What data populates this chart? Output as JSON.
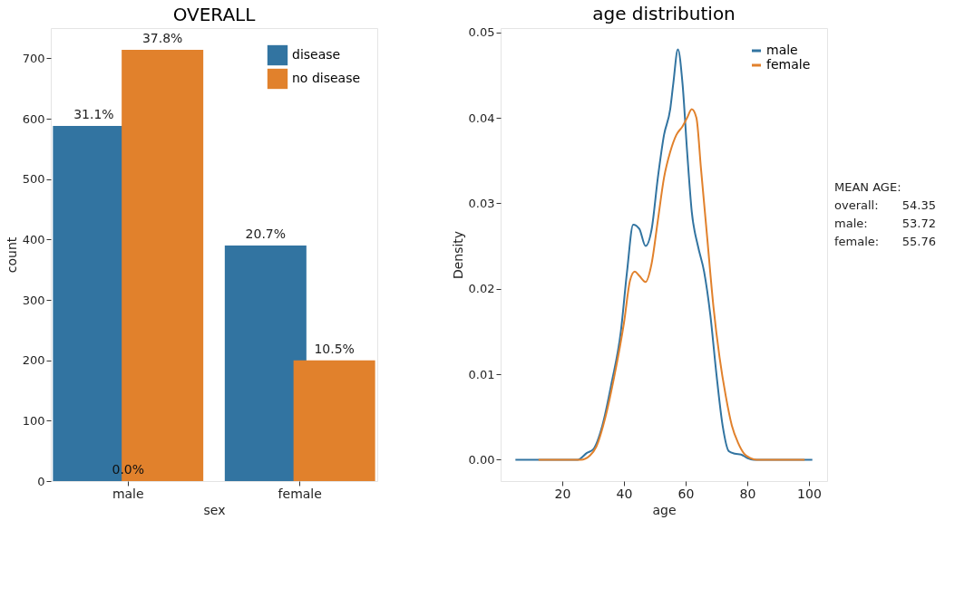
{
  "chart_data": [
    {
      "type": "bar",
      "title": "OVERALL",
      "xlabel": "sex",
      "ylabel": "count",
      "categories": [
        "male",
        "female"
      ],
      "series": [
        {
          "name": "disease",
          "color": "#3274a1",
          "values": [
            588,
            390
          ]
        },
        {
          "name": "no disease",
          "color": "#e1812c",
          "values": [
            714,
            200
          ]
        }
      ],
      "ylim": [
        0,
        750
      ],
      "yticks": [
        0,
        100,
        200,
        300,
        400,
        500,
        600,
        700
      ],
      "grid": false,
      "legend": "top right",
      "annotations": [
        {
          "text": "31.1%",
          "x": "male",
          "y": 588
        },
        {
          "text": "37.8%",
          "x": "male",
          "y": 714
        },
        {
          "text": "20.7%",
          "x": "female",
          "y": 390
        },
        {
          "text": "10.5%",
          "x": "female",
          "y": 200
        },
        {
          "text": "0.0%",
          "x": "male",
          "y": 0
        }
      ]
    },
    {
      "type": "line",
      "title": "age distribution",
      "xlabel": "age",
      "ylabel": "Density",
      "series": [
        {
          "name": "male",
          "color": "#3274a1",
          "x": [
            4.8,
            25,
            28,
            30,
            33,
            36,
            39,
            41,
            43,
            45,
            47,
            49,
            51,
            53,
            55,
            56,
            57.5,
            59,
            60.5,
            62,
            64,
            66,
            68,
            70,
            72,
            74,
            76,
            78,
            80,
            82,
            101.1
          ],
          "values": [
            0,
            0,
            0.0008,
            0.0012,
            0.004,
            0.009,
            0.015,
            0.022,
            0.0275,
            0.027,
            0.025,
            0.027,
            0.033,
            0.038,
            0.041,
            0.044,
            0.048,
            0.044,
            0.036,
            0.029,
            0.025,
            0.022,
            0.017,
            0.01,
            0.004,
            0.001,
            0.0007,
            0.0006,
            0.0002,
            0,
            0
          ]
        },
        {
          "name": "female",
          "color": "#e1812c",
          "x": [
            12.3,
            26,
            29,
            31,
            34,
            37,
            40,
            42,
            43.5,
            45,
            47,
            49,
            51,
            53,
            55,
            57,
            59,
            60.5,
            62,
            63.5,
            65,
            67,
            69,
            71,
            73,
            75,
            77,
            79,
            81,
            83,
            98.6
          ],
          "values": [
            0,
            0,
            0.0005,
            0.0015,
            0.005,
            0.01,
            0.016,
            0.021,
            0.022,
            0.0215,
            0.0208,
            0.023,
            0.028,
            0.033,
            0.036,
            0.038,
            0.039,
            0.04,
            0.041,
            0.04,
            0.034,
            0.026,
            0.018,
            0.012,
            0.0075,
            0.004,
            0.002,
            0.0007,
            0.0002,
            0,
            0
          ]
        }
      ],
      "xlim": [
        0,
        105.9
      ],
      "xticks": [
        20,
        40,
        60,
        80,
        100
      ],
      "ylim": [
        -0.0025,
        0.0505
      ],
      "yticks": [
        {
          "value": 0,
          "label": "0.00"
        },
        0.01,
        0.02,
        0.03,
        0.04,
        0.05
      ],
      "grid": false,
      "legend": "top right",
      "marker": "none",
      "line_style": "solid",
      "annotations": [
        "MEAN AGE:",
        "overall: 54.35",
        "male: 53.72",
        "female: 55.76"
      ]
    }
  ]
}
